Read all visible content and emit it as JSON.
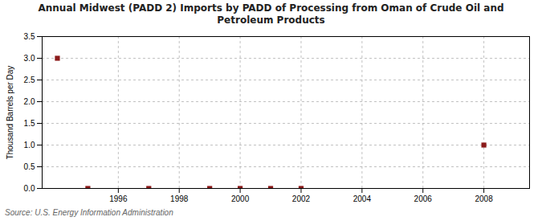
{
  "chart_data": {
    "type": "scatter",
    "title": "Annual Midwest (PADD 2) Imports by PADD of Processing from Oman of Crude Oil and\nPetroleum Products",
    "ylabel": "Thousand Barrels per Day",
    "source": "Source: U.S. Energy Information Administration",
    "x": [
      1994,
      1995,
      1997,
      1999,
      2000,
      2001,
      2002,
      2008
    ],
    "values": [
      3.0,
      0.0,
      0.0,
      0.0,
      0.0,
      0.0,
      0.0,
      1.0
    ],
    "color": "#8b1a1a",
    "marker": "square",
    "xlim": [
      1993.5,
      2009.5
    ],
    "xticks": [
      1996,
      1998,
      2000,
      2002,
      2004,
      2006,
      2008
    ],
    "ylim": [
      0,
      3.5
    ],
    "yticks": [
      {
        "value": 0,
        "label": "0.0"
      },
      0.5,
      {
        "value": 1,
        "label": "1.0"
      },
      1.5,
      {
        "value": 2,
        "label": "2.0"
      },
      2.5,
      {
        "value": 3,
        "label": "3.0"
      },
      3.5
    ],
    "grid": true
  }
}
